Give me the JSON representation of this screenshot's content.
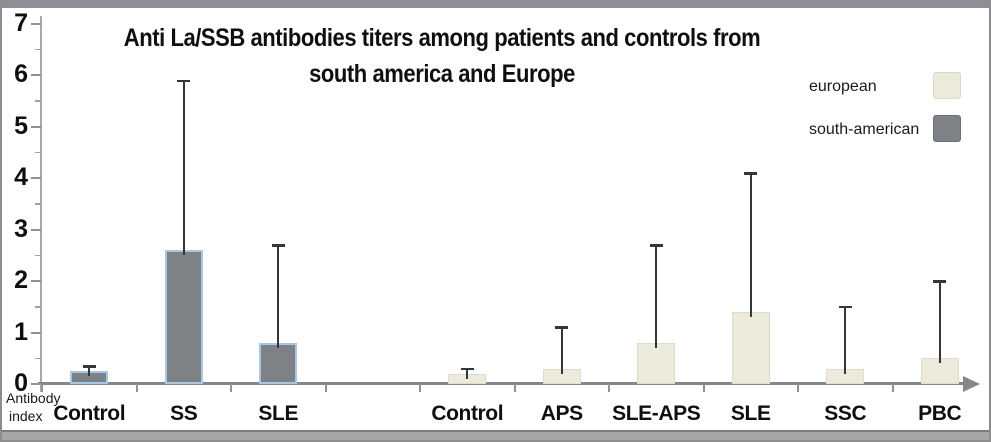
{
  "chart_data": {
    "type": "bar",
    "title": "Anti La/SSB antibodies titers among patients and controls from south america and Europe",
    "title_lines": [
      "Anti La/SSB antibodies titers among patients and controls from",
      "south america and Europe"
    ],
    "ylabel": "Antibody index",
    "ylabel_lines": [
      "Antibody",
      "index"
    ],
    "ylim": [
      0,
      7
    ],
    "yticks": [
      0,
      1,
      2,
      3,
      4,
      5,
      6,
      7
    ],
    "n_slots": 10,
    "grid": false,
    "legend_position": "top-right",
    "legend": [
      {
        "name": "european",
        "fill": "#ecebdb",
        "border": "#d9d8c7"
      },
      {
        "name": "south-american",
        "fill": "#7e8286",
        "border": "#6d7175"
      }
    ],
    "bars": [
      {
        "label": "Control",
        "group": "south-american",
        "slot": 0,
        "value": 0.25,
        "error_top": 0.35
      },
      {
        "label": "SS",
        "group": "south-american",
        "slot": 1,
        "value": 2.6,
        "error_top": 5.9
      },
      {
        "label": "SLE",
        "group": "south-american",
        "slot": 2,
        "value": 0.8,
        "error_top": 2.7
      },
      {
        "label": "Control",
        "group": "european",
        "slot": 4,
        "value": 0.2,
        "error_top": 0.3
      },
      {
        "label": "APS",
        "group": "european",
        "slot": 5,
        "value": 0.3,
        "error_top": 1.1
      },
      {
        "label": "SLE-APS",
        "group": "european",
        "slot": 6,
        "value": 0.8,
        "error_top": 2.7
      },
      {
        "label": "SLE",
        "group": "european",
        "slot": 7,
        "value": 1.4,
        "error_top": 4.1
      },
      {
        "label": "SSC",
        "group": "european",
        "slot": 8,
        "value": 0.3,
        "error_top": 1.5
      },
      {
        "label": "PBC",
        "group": "european",
        "slot": 9,
        "value": 0.5,
        "error_top": 2.0
      }
    ],
    "colors": {
      "south_american_fill": "#7e8286",
      "south_american_border": "#a9c6e2",
      "european_fill": "#ecebdb",
      "european_border": "#deddcc",
      "error_line": "#33373b",
      "axis_line": "#8b9196",
      "text": "#141414"
    }
  }
}
